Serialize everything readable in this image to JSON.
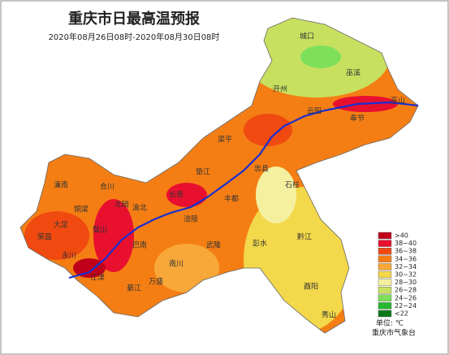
{
  "header": {
    "title": "重庆市日最高温预报",
    "subtitle": "2020年08月26日08时-2020年08月30日08时"
  },
  "map": {
    "places": [
      "城口",
      "巫溪",
      "开州",
      "云阳",
      "巫山",
      "奉节",
      "梁平",
      "忠县",
      "垫江",
      "石柱",
      "丰都",
      "潼南",
      "合川",
      "北碚",
      "渝北",
      "长寿",
      "铜梁",
      "大足",
      "荣昌",
      "璧山",
      "永川",
      "江津",
      "巴南",
      "涪陵",
      "武隆",
      "彭水",
      "黔江",
      "南川",
      "万盛",
      "綦江",
      "酉阳",
      "秀山"
    ]
  },
  "legend": {
    "items": [
      {
        "label": ">40",
        "color": "#c0001a"
      },
      {
        "label": "38~40",
        "color": "#e8102e"
      },
      {
        "label": "36~38",
        "color": "#f04a10"
      },
      {
        "label": "34~36",
        "color": "#f57e14"
      },
      {
        "label": "32~34",
        "color": "#f7a838"
      },
      {
        "label": "30~32",
        "color": "#f2d84a"
      },
      {
        "label": "28~30",
        "color": "#f4f0a0"
      },
      {
        "label": "26~28",
        "color": "#c8e060"
      },
      {
        "label": "24~26",
        "color": "#7ee05a"
      },
      {
        "label": "22~24",
        "color": "#28b830"
      },
      {
        "label": "<22",
        "color": "#0a7a18"
      }
    ],
    "unit": "单位: ℃",
    "source": "重庆市气象台"
  }
}
